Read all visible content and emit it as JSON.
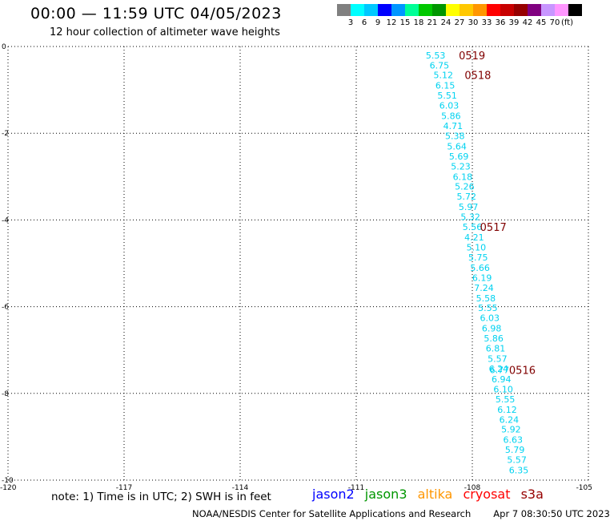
{
  "header": {
    "title": "00:00 — 11:59 UTC 04/05/2023",
    "subtitle": "12 hour collection of altimeter wave heights"
  },
  "legend": {
    "colors": [
      "#808080",
      "#00ffff",
      "#00c8ff",
      "#0000ff",
      "#0096ff",
      "#00ff96",
      "#00c800",
      "#009600",
      "#ffff00",
      "#ffc800",
      "#ff9600",
      "#ff0000",
      "#c80000",
      "#960000",
      "#800080",
      "#c896ff",
      "#ff96ff",
      "#000000"
    ],
    "labels": [
      "3",
      "6",
      "9",
      "12",
      "15",
      "18",
      "21",
      "24",
      "27",
      "30",
      "33",
      "36",
      "39",
      "42",
      "45",
      "70"
    ],
    "unit": "(ft)"
  },
  "chart_data": {
    "type": "scatter",
    "xlim": [
      -120,
      -105
    ],
    "ylim": [
      -10,
      0
    ],
    "x_ticks": [
      -120,
      -117,
      -114,
      -111,
      -108,
      -105
    ],
    "y_ticks": [
      0,
      -2,
      -4,
      -6,
      -8,
      -10
    ],
    "grid": true,
    "points": [
      {
        "x": -108.95,
        "y": -0.2,
        "label": "5.53"
      },
      {
        "x": -108.85,
        "y": -0.43,
        "label": "6.75"
      },
      {
        "x": -108.75,
        "y": -0.66,
        "label": "5.12"
      },
      {
        "x": -108.7,
        "y": -0.9,
        "label": "6.15"
      },
      {
        "x": -108.65,
        "y": -1.13,
        "label": "5.51"
      },
      {
        "x": -108.6,
        "y": -1.36,
        "label": "6.03"
      },
      {
        "x": -108.55,
        "y": -1.6,
        "label": "5.86"
      },
      {
        "x": -108.5,
        "y": -1.83,
        "label": "4.71"
      },
      {
        "x": -108.45,
        "y": -2.06,
        "label": "5.38"
      },
      {
        "x": -108.4,
        "y": -2.3,
        "label": "5.64"
      },
      {
        "x": -108.35,
        "y": -2.53,
        "label": "5.69"
      },
      {
        "x": -108.3,
        "y": -2.76,
        "label": "5.23"
      },
      {
        "x": -108.25,
        "y": -3.0,
        "label": "6.18"
      },
      {
        "x": -108.2,
        "y": -3.23,
        "label": "5.26"
      },
      {
        "x": -108.15,
        "y": -3.46,
        "label": "5.72"
      },
      {
        "x": -108.1,
        "y": -3.7,
        "label": "5.97"
      },
      {
        "x": -108.05,
        "y": -3.93,
        "label": "5.32"
      },
      {
        "x": -108.0,
        "y": -4.16,
        "label": "5.56"
      },
      {
        "x": -107.95,
        "y": -4.4,
        "label": "4.21"
      },
      {
        "x": -107.9,
        "y": -4.63,
        "label": "5.10"
      },
      {
        "x": -107.85,
        "y": -4.86,
        "label": "5.75"
      },
      {
        "x": -107.8,
        "y": -5.1,
        "label": "5.66"
      },
      {
        "x": -107.75,
        "y": -5.33,
        "label": "6.19"
      },
      {
        "x": -107.7,
        "y": -5.56,
        "label": "7.24"
      },
      {
        "x": -107.65,
        "y": -5.8,
        "label": "5.58"
      },
      {
        "x": -107.6,
        "y": -6.03,
        "label": "5.55"
      },
      {
        "x": -107.55,
        "y": -6.26,
        "label": "6.03"
      },
      {
        "x": -107.5,
        "y": -6.5,
        "label": "6.98"
      },
      {
        "x": -107.45,
        "y": -6.73,
        "label": "5.86"
      },
      {
        "x": -107.4,
        "y": -6.96,
        "label": "6.81"
      },
      {
        "x": -107.35,
        "y": -7.2,
        "label": "5.57"
      },
      {
        "x": -107.32,
        "y": -7.43,
        "label": "6.24"
      },
      {
        "x": -107.3,
        "y": -7.46,
        "label": "6.77"
      },
      {
        "x": -107.25,
        "y": -7.67,
        "label": "6.94"
      },
      {
        "x": -107.2,
        "y": -7.9,
        "label": "6.10"
      },
      {
        "x": -107.15,
        "y": -8.13,
        "label": "5.55"
      },
      {
        "x": -107.1,
        "y": -8.37,
        "label": "6.12"
      },
      {
        "x": -107.05,
        "y": -8.6,
        "label": "6.24"
      },
      {
        "x": -107.0,
        "y": -8.83,
        "label": "5.92"
      },
      {
        "x": -106.95,
        "y": -9.07,
        "label": "6.63"
      },
      {
        "x": -106.9,
        "y": -9.3,
        "label": "5.79"
      },
      {
        "x": -106.85,
        "y": -9.53,
        "label": "5.57"
      },
      {
        "x": -106.8,
        "y": -9.77,
        "label": "6.35"
      }
    ],
    "point_color": "#00d2f0",
    "time_annotations": [
      {
        "x": -108.35,
        "y": -0.2,
        "label": "0519"
      },
      {
        "x": -108.2,
        "y": -0.66,
        "label": "0518"
      },
      {
        "x": -107.8,
        "y": -4.16,
        "label": "0517"
      },
      {
        "x": -107.05,
        "y": -7.46,
        "label": "0516"
      }
    ],
    "annotation_color": "#800000"
  },
  "footer": {
    "note": "note: 1) Time is in UTC; 2) SWH is in feet",
    "satellites": [
      {
        "name": "jason2",
        "color": "#0000ff"
      },
      {
        "name": "jason3",
        "color": "#009600"
      },
      {
        "name": "altika",
        "color": "#ff9600"
      },
      {
        "name": "cryosat",
        "color": "#ff0000"
      },
      {
        "name": "s3a",
        "color": "#960000"
      }
    ],
    "credit": "NOAA/NESDIS Center for Satellite Applications and Research",
    "timestamp": "Apr  7 08:30:50 UTC 2023"
  }
}
